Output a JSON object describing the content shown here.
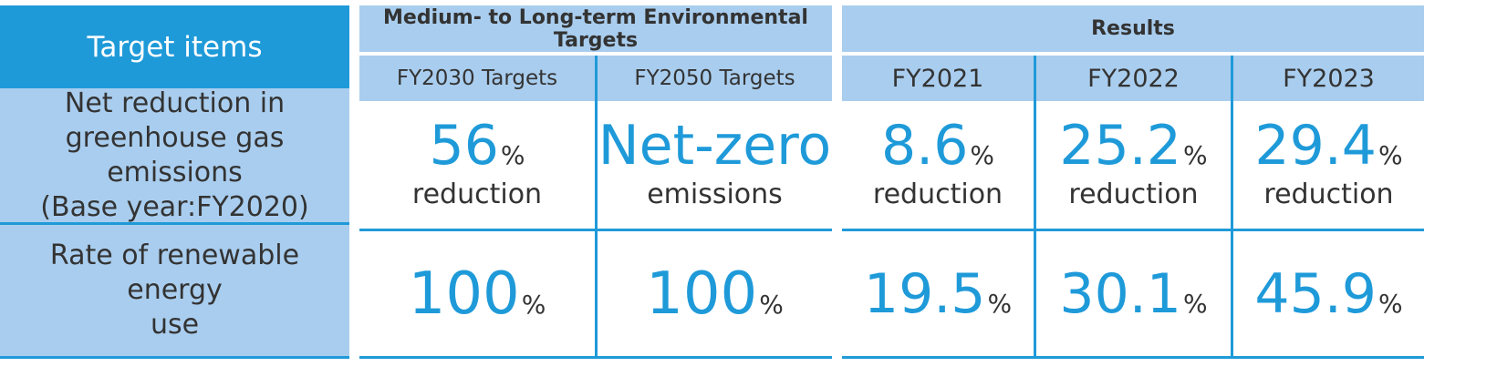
{
  "header": {
    "target_items": "Target items",
    "medium_long_group": "Medium- to Long-term Environmental Targets",
    "results_group": "Results",
    "fy2030_targets": "FY2030 Targets",
    "fy2050_targets": "FY2050 Targets",
    "fy2021": "FY2021",
    "fy2022": "FY2022",
    "fy2023": "FY2023"
  },
  "rows": [
    {
      "label_lines": [
        "Net reduction in",
        "greenhouse gas emissions",
        "(Base year:FY2020)"
      ],
      "fy2030": {
        "value": "56",
        "unit": "%",
        "note": "reduction"
      },
      "fy2050": {
        "value": "Net-zero",
        "note": "emissions"
      },
      "fy2021": {
        "value": "8.6",
        "unit": "%",
        "note": "reduction"
      },
      "fy2022": {
        "value": "25.2",
        "unit": "%",
        "note": "reduction"
      },
      "fy2023": {
        "value": "29.4",
        "unit": "%",
        "note": "reduction"
      }
    },
    {
      "label_lines": [
        "Rate of renewable energy",
        "use"
      ],
      "fy2030": {
        "value": "100",
        "unit": "%"
      },
      "fy2050": {
        "value": "100",
        "unit": "%"
      },
      "fy2021": {
        "value": "19.5",
        "unit": "%"
      },
      "fy2022": {
        "value": "30.1",
        "unit": "%"
      },
      "fy2023": {
        "value": "45.9",
        "unit": "%"
      }
    }
  ],
  "colors": {
    "accent": "#1f9ad9",
    "header_light": "#a9cdee",
    "text": "#333333"
  }
}
